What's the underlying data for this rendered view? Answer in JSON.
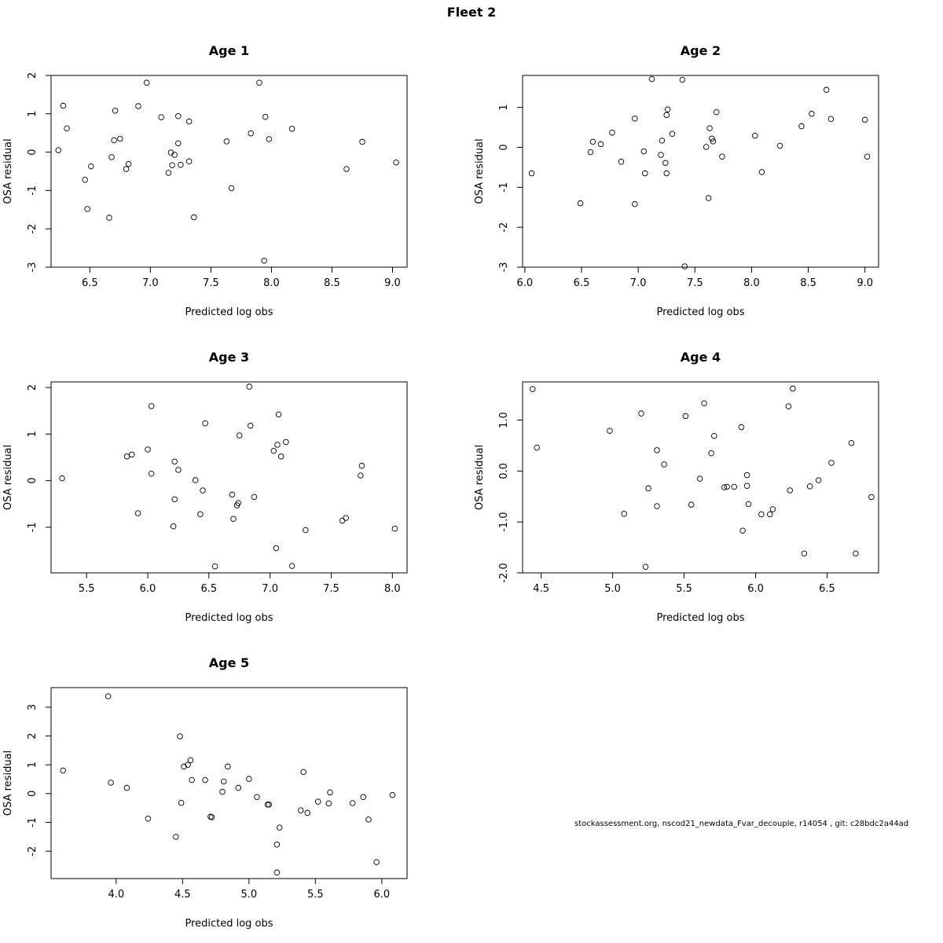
{
  "figure": {
    "title": "Fleet 2",
    "footer": "stockassessment.org, nscod21_newdata_Fvar_decouple, r14054 , git: c28bdc2a44ad"
  },
  "chart_data": [
    {
      "type": "scatter",
      "title": "Age 1",
      "xlabel": "Predicted log obs",
      "ylabel": "OSA residual",
      "xlim": [
        6.18,
        9.12
      ],
      "ylim": [
        -3.0,
        2.0
      ],
      "xticks": [
        6.5,
        7.0,
        7.5,
        8.0,
        8.5,
        9.0
      ],
      "yticks": [
        -3,
        -2,
        -1,
        0,
        1,
        2
      ],
      "ytick_labels": [
        "-3",
        "-2",
        "-1",
        "0",
        "1",
        "2"
      ],
      "grid": false,
      "points": [
        [
          6.24,
          0.05
        ],
        [
          6.28,
          1.21
        ],
        [
          6.31,
          0.62
        ],
        [
          6.46,
          -0.72
        ],
        [
          6.48,
          -1.48
        ],
        [
          6.51,
          -0.37
        ],
        [
          6.66,
          -1.71
        ],
        [
          6.68,
          -0.13
        ],
        [
          6.7,
          0.31
        ],
        [
          6.71,
          1.08
        ],
        [
          6.75,
          0.35
        ],
        [
          6.8,
          -0.44
        ],
        [
          6.82,
          -0.31
        ],
        [
          6.9,
          1.2
        ],
        [
          6.97,
          1.81
        ],
        [
          7.09,
          0.91
        ],
        [
          7.15,
          -0.54
        ],
        [
          7.17,
          -0.01
        ],
        [
          7.18,
          -0.34
        ],
        [
          7.2,
          -0.07
        ],
        [
          7.23,
          0.23
        ],
        [
          7.23,
          0.94
        ],
        [
          7.25,
          -0.33
        ],
        [
          7.32,
          0.8
        ],
        [
          7.32,
          -0.24
        ],
        [
          7.36,
          -1.7
        ],
        [
          7.63,
          0.28
        ],
        [
          7.67,
          -0.94
        ],
        [
          7.83,
          0.49
        ],
        [
          7.9,
          1.81
        ],
        [
          7.94,
          -2.83
        ],
        [
          7.95,
          0.92
        ],
        [
          7.98,
          0.34
        ],
        [
          8.17,
          0.61
        ],
        [
          8.62,
          -0.44
        ],
        [
          8.75,
          0.27
        ],
        [
          9.03,
          -0.27
        ]
      ]
    },
    {
      "type": "scatter",
      "title": "Age 2",
      "xlabel": "Predicted log obs",
      "ylabel": "OSA residual",
      "xlim": [
        5.98,
        9.12
      ],
      "ylim": [
        -3.0,
        1.8
      ],
      "xticks": [
        6.0,
        6.5,
        7.0,
        7.5,
        8.0,
        8.5,
        9.0
      ],
      "yticks": [
        -3,
        -2,
        -1,
        0,
        1
      ],
      "ytick_labels": [
        "-3",
        "-2",
        "-1",
        "0",
        "1"
      ],
      "grid": false,
      "points": [
        [
          6.06,
          -0.65
        ],
        [
          6.49,
          -1.4
        ],
        [
          6.58,
          -0.12
        ],
        [
          6.6,
          0.14
        ],
        [
          6.67,
          0.08
        ],
        [
          6.77,
          0.37
        ],
        [
          6.85,
          -0.36
        ],
        [
          6.97,
          -1.42
        ],
        [
          6.97,
          0.72
        ],
        [
          7.05,
          -0.1
        ],
        [
          7.06,
          -0.65
        ],
        [
          7.12,
          1.71
        ],
        [
          7.2,
          -0.19
        ],
        [
          7.21,
          0.17
        ],
        [
          7.24,
          -0.39
        ],
        [
          7.25,
          0.81
        ],
        [
          7.25,
          -0.65
        ],
        [
          7.26,
          0.95
        ],
        [
          7.3,
          0.34
        ],
        [
          7.39,
          1.69
        ],
        [
          7.41,
          -2.98
        ],
        [
          7.6,
          0.01
        ],
        [
          7.62,
          -1.27
        ],
        [
          7.63,
          0.48
        ],
        [
          7.65,
          0.22
        ],
        [
          7.66,
          0.15
        ],
        [
          7.69,
          0.88
        ],
        [
          7.74,
          -0.23
        ],
        [
          8.03,
          0.29
        ],
        [
          8.09,
          -0.62
        ],
        [
          8.25,
          0.04
        ],
        [
          8.44,
          0.53
        ],
        [
          8.53,
          0.84
        ],
        [
          8.66,
          1.44
        ],
        [
          8.7,
          0.71
        ],
        [
          9.0,
          0.69
        ],
        [
          9.02,
          -0.23
        ]
      ]
    },
    {
      "type": "scatter",
      "title": "Age 3",
      "xlabel": "Predicted log obs",
      "ylabel": "OSA residual",
      "xlim": [
        5.21,
        8.12
      ],
      "ylim": [
        -1.98,
        2.12
      ],
      "xticks": [
        5.5,
        6.0,
        6.5,
        7.0,
        7.5,
        8.0
      ],
      "yticks": [
        -1,
        0,
        1,
        2
      ],
      "ytick_labels": [
        "-1",
        "0",
        "1",
        "2"
      ],
      "grid": false,
      "points": [
        [
          5.3,
          0.05
        ],
        [
          5.83,
          0.52
        ],
        [
          5.87,
          0.56
        ],
        [
          5.92,
          -0.7
        ],
        [
          6.0,
          0.67
        ],
        [
          6.03,
          1.6
        ],
        [
          6.03,
          0.15
        ],
        [
          6.21,
          -0.98
        ],
        [
          6.22,
          -0.4
        ],
        [
          6.22,
          0.41
        ],
        [
          6.25,
          0.23
        ],
        [
          6.39,
          0.01
        ],
        [
          6.43,
          -0.72
        ],
        [
          6.45,
          -0.21
        ],
        [
          6.47,
          1.23
        ],
        [
          6.55,
          -1.84
        ],
        [
          6.69,
          -0.3
        ],
        [
          6.7,
          -0.82
        ],
        [
          6.73,
          -0.53
        ],
        [
          6.74,
          -0.48
        ],
        [
          6.75,
          0.97
        ],
        [
          6.83,
          2.02
        ],
        [
          6.84,
          1.18
        ],
        [
          6.87,
          -0.35
        ],
        [
          7.03,
          0.64
        ],
        [
          7.05,
          -1.45
        ],
        [
          7.06,
          0.77
        ],
        [
          7.07,
          1.42
        ],
        [
          7.09,
          0.52
        ],
        [
          7.13,
          0.83
        ],
        [
          7.18,
          -1.83
        ],
        [
          7.29,
          -1.06
        ],
        [
          7.59,
          -0.86
        ],
        [
          7.62,
          -0.8
        ],
        [
          7.74,
          0.11
        ],
        [
          7.75,
          0.32
        ],
        [
          8.02,
          -1.03
        ]
      ]
    },
    {
      "type": "scatter",
      "title": "Age 4",
      "xlabel": "Predicted log obs",
      "ylabel": "OSA residual",
      "xlim": [
        4.37,
        6.86
      ],
      "ylim": [
        -2.0,
        1.75
      ],
      "xticks": [
        4.5,
        5.0,
        5.5,
        6.0,
        6.5
      ],
      "yticks": [
        -2.0,
        -1.0,
        0.0,
        1.0
      ],
      "ytick_labels": [
        "-2.0",
        "-1.0",
        "0.0",
        "1.0"
      ],
      "grid": false,
      "points": [
        [
          4.44,
          1.61
        ],
        [
          4.47,
          0.46
        ],
        [
          4.98,
          0.79
        ],
        [
          5.08,
          -0.84
        ],
        [
          5.2,
          1.13
        ],
        [
          5.23,
          -1.88
        ],
        [
          5.25,
          -0.34
        ],
        [
          5.31,
          0.41
        ],
        [
          5.31,
          -0.69
        ],
        [
          5.36,
          0.13
        ],
        [
          5.51,
          1.08
        ],
        [
          5.55,
          -0.66
        ],
        [
          5.61,
          -0.15
        ],
        [
          5.64,
          1.33
        ],
        [
          5.69,
          0.35
        ],
        [
          5.71,
          0.69
        ],
        [
          5.78,
          -0.32
        ],
        [
          5.8,
          -0.31
        ],
        [
          5.85,
          -0.31
        ],
        [
          5.9,
          0.86
        ],
        [
          5.91,
          -1.17
        ],
        [
          5.94,
          -0.08
        ],
        [
          5.94,
          -0.29
        ],
        [
          5.95,
          -0.65
        ],
        [
          6.04,
          -0.85
        ],
        [
          6.1,
          -0.85
        ],
        [
          6.12,
          -0.75
        ],
        [
          6.23,
          1.27
        ],
        [
          6.24,
          -0.38
        ],
        [
          6.26,
          1.62
        ],
        [
          6.34,
          -1.62
        ],
        [
          6.38,
          -0.3
        ],
        [
          6.44,
          -0.18
        ],
        [
          6.53,
          0.16
        ],
        [
          6.67,
          0.55
        ],
        [
          6.7,
          -1.62
        ],
        [
          6.81,
          -0.51
        ]
      ]
    },
    {
      "type": "scatter",
      "title": "Age 5",
      "xlabel": "Predicted log obs",
      "ylabel": "OSA residual",
      "xlim": [
        3.51,
        6.19
      ],
      "ylim": [
        -2.95,
        3.68
      ],
      "xticks": [
        4.0,
        4.5,
        5.0,
        5.5,
        6.0
      ],
      "yticks": [
        -2,
        -1,
        0,
        1,
        2,
        3
      ],
      "ytick_labels": [
        "-2",
        "-1",
        "0",
        "1",
        "2",
        "3"
      ],
      "grid": false,
      "points": [
        [
          3.6,
          0.8
        ],
        [
          3.94,
          3.38
        ],
        [
          3.96,
          0.38
        ],
        [
          4.08,
          0.2
        ],
        [
          4.24,
          -0.87
        ],
        [
          4.45,
          -1.5
        ],
        [
          4.48,
          1.99
        ],
        [
          4.49,
          -0.32
        ],
        [
          4.51,
          0.94
        ],
        [
          4.54,
          1.0
        ],
        [
          4.56,
          1.16
        ],
        [
          4.57,
          0.47
        ],
        [
          4.67,
          0.47
        ],
        [
          4.71,
          -0.8
        ],
        [
          4.72,
          -0.82
        ],
        [
          4.8,
          0.06
        ],
        [
          4.81,
          0.42
        ],
        [
          4.84,
          0.94
        ],
        [
          4.92,
          0.2
        ],
        [
          5.0,
          0.51
        ],
        [
          5.06,
          -0.12
        ],
        [
          5.14,
          -0.38
        ],
        [
          5.15,
          -0.38
        ],
        [
          5.21,
          -1.77
        ],
        [
          5.21,
          -2.74
        ],
        [
          5.23,
          -1.18
        ],
        [
          5.39,
          -0.58
        ],
        [
          5.41,
          0.75
        ],
        [
          5.44,
          -0.67
        ],
        [
          5.52,
          -0.28
        ],
        [
          5.6,
          -0.34
        ],
        [
          5.61,
          0.04
        ],
        [
          5.78,
          -0.33
        ],
        [
          5.86,
          -0.12
        ],
        [
          5.9,
          -0.9
        ],
        [
          5.96,
          -2.38
        ],
        [
          6.08,
          -0.05
        ]
      ]
    }
  ]
}
